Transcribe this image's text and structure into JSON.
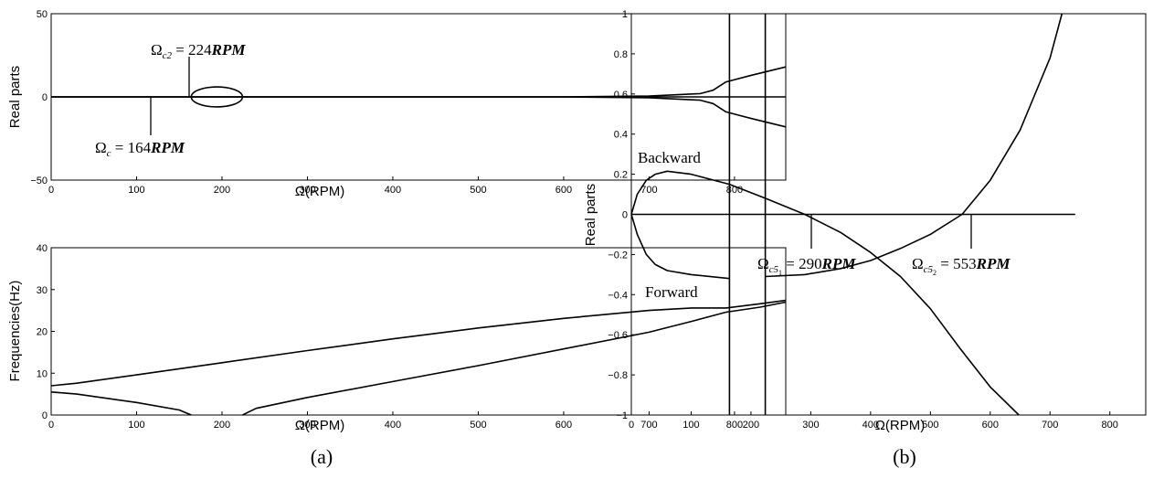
{
  "chart_data": [
    {
      "type": "line",
      "panel": "(a)",
      "xlabel": "Ω(RPM)",
      "ylabel": "Real parts",
      "xlim": [
        0,
        860
      ],
      "ylim": [
        -50,
        50
      ],
      "xticks": [
        0,
        100,
        200,
        300,
        400,
        500,
        600,
        700,
        800
      ],
      "yticks": [
        -50,
        0,
        50
      ],
      "series": [
        {
          "x": [
            0,
            300,
            600,
            700,
            760,
            775,
            790,
            820,
            860
          ],
          "y": [
            0,
            0,
            0,
            0.5,
            2,
            4,
            9,
            13,
            18
          ]
        },
        {
          "x": [
            0,
            300,
            600,
            700,
            760,
            775,
            790,
            820,
            860
          ],
          "y": [
            0,
            0,
            0,
            -0.5,
            -2,
            -4,
            -9,
            -13,
            -18
          ]
        }
      ],
      "ellipse": {
        "x_range": [
          164,
          224
        ],
        "y_range": [
          -6,
          6
        ]
      },
      "annotations": [
        {
          "label": "Ω",
          "sub": "c2",
          "value": "224",
          "unit": "RPM",
          "at_x": 224
        },
        {
          "label": "Ω",
          "sub": "c",
          "value": "164",
          "unit": "RPM",
          "at_x": 164
        }
      ]
    },
    {
      "type": "line",
      "panel": "(a)",
      "xlabel": "Ω(RPM)",
      "ylabel": "Frequencies(Hz)",
      "xlim": [
        0,
        860
      ],
      "ylim": [
        0,
        40
      ],
      "xticks": [
        0,
        100,
        200,
        300,
        400,
        500,
        600,
        700,
        800
      ],
      "yticks": [
        0,
        10,
        20,
        30,
        40
      ],
      "series": [
        {
          "x": [
            0,
            30,
            100,
            200,
            300,
            400,
            500,
            600,
            700,
            750,
            790,
            830,
            860
          ],
          "y": [
            7,
            7.6,
            9.6,
            12.5,
            15.4,
            18.2,
            20.8,
            23.1,
            25,
            25.6,
            25.6,
            26.6,
            27.4
          ]
        },
        {
          "x": [
            0,
            30,
            100,
            150,
            164
          ],
          "y": [
            5.5,
            5,
            3,
            1.2,
            0
          ]
        },
        {
          "x": [
            224,
            240,
            300,
            400,
            500,
            600,
            700,
            750,
            790,
            830,
            860
          ],
          "y": [
            0,
            1.6,
            4.2,
            8,
            11.8,
            15.8,
            19.8,
            22.4,
            24.6,
            25.8,
            27
          ]
        }
      ]
    },
    {
      "type": "line",
      "panel": "(b)",
      "xlabel": "Ω(RPM)",
      "ylabel": "Real parts",
      "xlim": [
        0,
        860
      ],
      "ylim": [
        -1,
        1
      ],
      "xticks": [
        0,
        100,
        200,
        300,
        400,
        500,
        600,
        700,
        800
      ],
      "yticks": [
        -1,
        -0.8,
        -0.6,
        -0.4,
        -0.2,
        0,
        0.2,
        0.4,
        0.6,
        0.8,
        1
      ],
      "series": [
        {
          "x": [
            0,
            10,
            25,
            40,
            60,
            100,
            164,
            224,
            290,
            350,
            400,
            450,
            500,
            550,
            600,
            648
          ],
          "y": [
            0,
            0.1,
            0.17,
            0.2,
            0.215,
            0.2,
            0.15,
            0.08,
            0,
            -0.09,
            -0.19,
            -0.31,
            -0.47,
            -0.67,
            -0.86,
            -1
          ]
        },
        {
          "x": [
            0,
            10,
            25,
            40,
            60,
            100,
            164
          ],
          "y": [
            0,
            -0.1,
            -0.2,
            -0.25,
            -0.28,
            -0.3,
            -0.32
          ]
        },
        {
          "x": [
            224,
            290,
            350,
            400,
            450,
            500,
            553,
            600,
            650,
            700,
            720
          ],
          "y": [
            -0.31,
            -0.3,
            -0.27,
            -0.23,
            -0.17,
            -0.1,
            0,
            0.17,
            0.42,
            0.78,
            1
          ]
        },
        {
          "x": [
            0,
            742
          ],
          "y": [
            0,
            0
          ]
        },
        {
          "x": [
            164,
            164
          ],
          "y": [
            -1,
            1
          ]
        },
        {
          "x": [
            224,
            224
          ],
          "y": [
            -1,
            1
          ]
        }
      ],
      "labels": [
        "Backward",
        "Forward"
      ],
      "annotations": [
        {
          "label": "Ω",
          "sub": "c5",
          "subsub": "1",
          "value": "290",
          "unit": "RPM",
          "at_x": 290
        },
        {
          "label": "Ω",
          "sub": "c5",
          "subsub": "2",
          "value": "553",
          "unit": "RPM",
          "at_x": 553
        }
      ]
    }
  ],
  "captions": {
    "left": "(a)",
    "right": "(b)"
  }
}
